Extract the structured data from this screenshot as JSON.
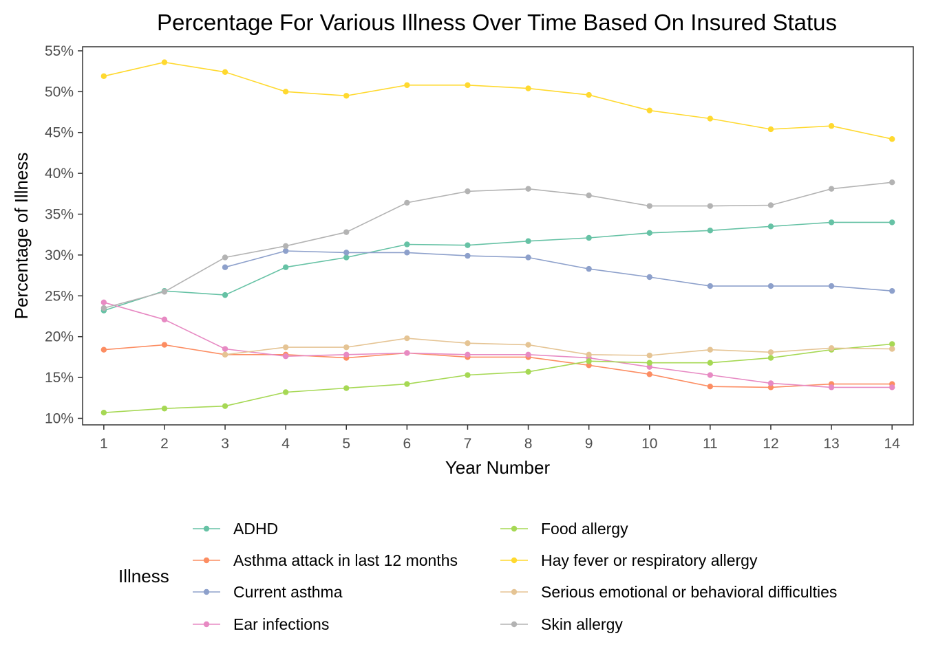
{
  "chart_data": {
    "type": "line",
    "title": "Percentage For Various Illness Over Time Based On Insured Status",
    "xlabel": "Year Number",
    "ylabel": "Percentage of Illness",
    "x": [
      1,
      2,
      3,
      4,
      5,
      6,
      7,
      8,
      9,
      10,
      11,
      12,
      13,
      14
    ],
    "xlim": [
      0.65,
      14.35
    ],
    "ylim": [
      9.2,
      55.5
    ],
    "yticks": [
      10,
      15,
      20,
      25,
      30,
      35,
      40,
      45,
      50,
      55
    ],
    "ytick_suffix": "%",
    "grid": false,
    "legend_title": "Illness",
    "legend_position": "bottom",
    "series": [
      {
        "name": "ADHD",
        "color": "#66c2a5",
        "values": [
          23.2,
          25.6,
          25.1,
          28.5,
          29.7,
          31.3,
          31.2,
          31.7,
          32.1,
          32.7,
          33.0,
          33.5,
          34.0,
          34.0
        ]
      },
      {
        "name": "Asthma attack in last 12 months",
        "color": "#fc8d62",
        "values": [
          18.4,
          19.0,
          17.8,
          17.8,
          17.4,
          18.0,
          17.5,
          17.5,
          16.5,
          15.4,
          13.9,
          13.8,
          14.2,
          14.2
        ]
      },
      {
        "name": "Current asthma",
        "color": "#8da0cb",
        "values": [
          null,
          null,
          28.5,
          30.5,
          30.3,
          30.3,
          29.9,
          29.7,
          28.3,
          27.3,
          26.2,
          26.2,
          26.2,
          25.6
        ]
      },
      {
        "name": "Ear infections",
        "color": "#e78ac3",
        "values": [
          24.2,
          22.1,
          18.5,
          17.6,
          17.8,
          18.0,
          17.8,
          17.8,
          17.4,
          16.3,
          15.3,
          14.3,
          13.8,
          13.8
        ]
      },
      {
        "name": "Food allergy",
        "color": "#a6d854",
        "values": [
          10.7,
          11.2,
          11.5,
          13.2,
          13.7,
          14.2,
          15.3,
          15.7,
          17.0,
          16.8,
          16.8,
          17.4,
          18.4,
          19.1
        ]
      },
      {
        "name": "Hay fever or respiratory allergy",
        "color": "#ffd92f",
        "values": [
          51.9,
          53.6,
          52.4,
          50.0,
          49.5,
          50.8,
          50.8,
          50.4,
          49.6,
          47.7,
          46.7,
          45.4,
          45.8,
          44.2
        ]
      },
      {
        "name": "Serious emotional or behavioral difficulties",
        "color": "#e5c494",
        "values": [
          null,
          null,
          17.8,
          18.7,
          18.7,
          19.8,
          19.2,
          19.0,
          17.8,
          17.7,
          18.4,
          18.1,
          18.6,
          18.5
        ]
      },
      {
        "name": "Skin allergy",
        "color": "#b3b3b3",
        "values": [
          23.5,
          25.5,
          29.7,
          31.1,
          32.8,
          36.4,
          37.8,
          38.1,
          37.3,
          36.0,
          36.0,
          36.1,
          38.1,
          38.9
        ]
      }
    ]
  }
}
